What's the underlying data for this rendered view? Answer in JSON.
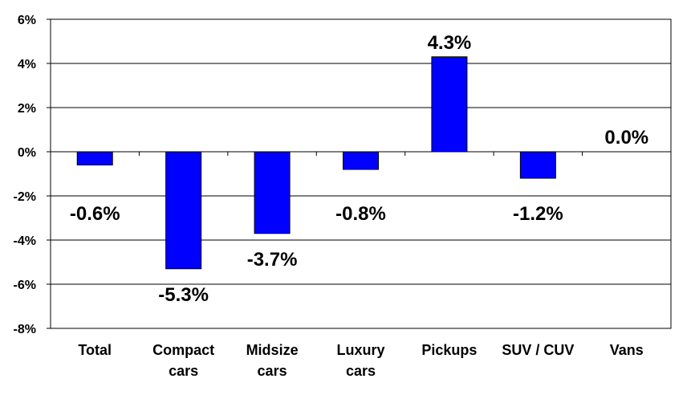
{
  "chart_data": {
    "type": "bar",
    "categories": [
      [
        "Total"
      ],
      [
        "Compact",
        "cars"
      ],
      [
        "Midsize",
        "cars"
      ],
      [
        "Luxury",
        "cars"
      ],
      [
        "Pickups"
      ],
      [
        "SUV / CUV"
      ],
      [
        "Vans"
      ]
    ],
    "values": [
      -0.6,
      -5.3,
      -3.7,
      -0.8,
      4.3,
      -1.2,
      0.0
    ],
    "data_labels": [
      "-0.6%",
      "-5.3%",
      "-3.7%",
      "-0.8%",
      "4.3%",
      "-1.2%",
      "0.0%"
    ],
    "title": "",
    "xlabel": "",
    "ylabel": "",
    "ylim": [
      -8,
      6
    ],
    "y_ticks": [
      6,
      4,
      2,
      0,
      -2,
      -4,
      -6,
      -8
    ],
    "y_tick_labels": [
      "6%",
      "4%",
      "2%",
      "0%",
      "-2%",
      "-4%",
      "-6%",
      "-8%"
    ],
    "grid": true,
    "legend": "none",
    "colors": {
      "bar": "#0000ff",
      "bar_outline": "#000000",
      "grid": "#000000",
      "text": "#000000"
    }
  }
}
